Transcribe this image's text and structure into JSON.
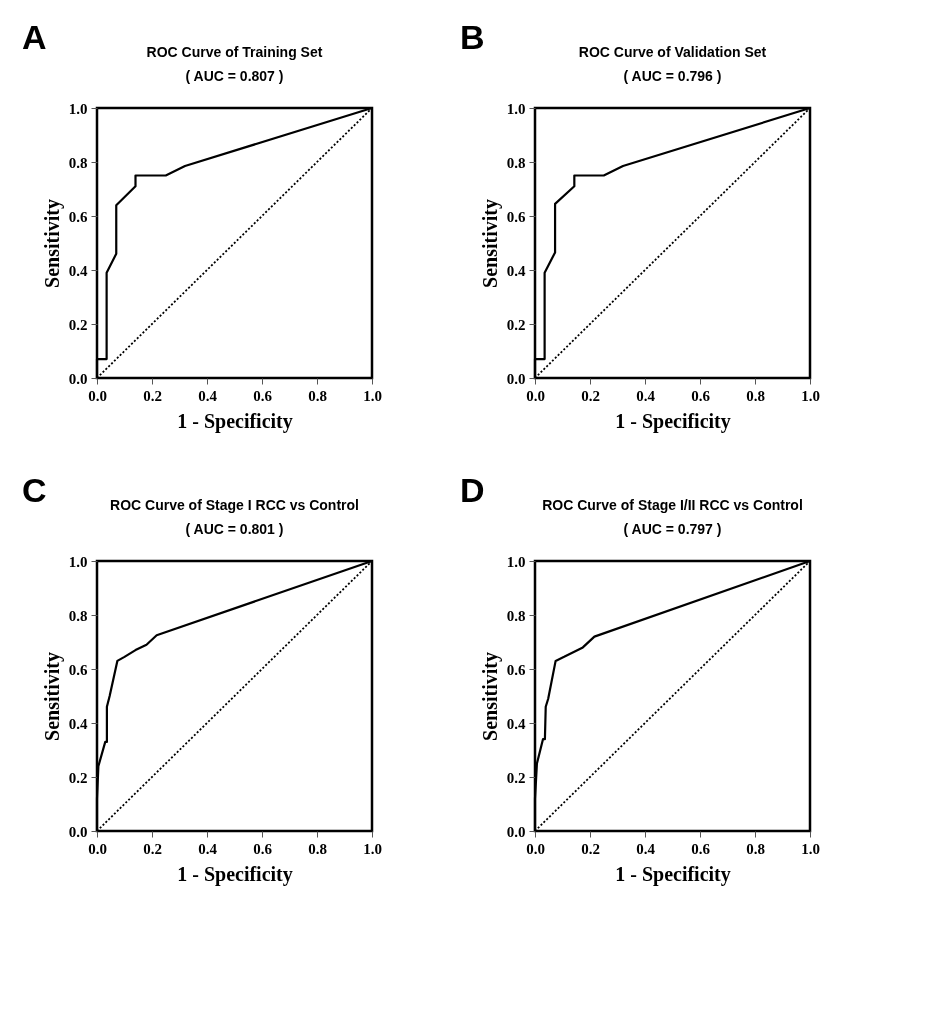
{
  "chart_data": [
    {
      "type": "line",
      "title": "ROC Curve of Training Set",
      "subtitle": "( AUC  = 0.807 )",
      "xlabel": "1 - Specificity",
      "ylabel": "Sensitivity",
      "annotations": [
        "A"
      ],
      "xlim": [
        0,
        1
      ],
      "ylim": [
        0,
        1
      ],
      "xticks": [
        {
          "value": 0,
          "label": "0.0"
        },
        {
          "value": 0.2,
          "label": "0.2"
        },
        {
          "value": 0.4,
          "label": "0.4"
        },
        {
          "value": 0.6,
          "label": "0.6"
        },
        {
          "value": 0.8,
          "label": "0.8"
        },
        {
          "value": 1,
          "label": "1.0"
        }
      ],
      "yticks": [
        {
          "value": 0,
          "label": "0.0"
        },
        {
          "value": 0.2,
          "label": "0.2"
        },
        {
          "value": 0.4,
          "label": "0.4"
        },
        {
          "value": 0.6,
          "label": "0.6"
        },
        {
          "value": 0.8,
          "label": "0.8"
        },
        {
          "value": 1,
          "label": "1.0"
        }
      ],
      "grid": false,
      "series": [
        {
          "color": "#000000",
          "line_style": "solid",
          "x": [
            0,
            0,
            0.035,
            0.035,
            0.07,
            0.07,
            0.14,
            0.14,
            0.25,
            0.32,
            1
          ],
          "values": [
            0,
            0.07,
            0.07,
            0.39,
            0.46,
            0.64,
            0.71,
            0.75,
            0.75,
            0.785,
            1
          ]
        },
        {
          "type": "line",
          "color": "#000000",
          "line_style": "dotted",
          "x": [
            0,
            1
          ],
          "values": [
            0,
            1
          ]
        }
      ]
    },
    {
      "type": "line",
      "title": "ROC Curve of Validation Set",
      "subtitle": "( AUC = 0.796 )",
      "xlabel": "1 - Specificity",
      "ylabel": "Sensitivity",
      "annotations": [
        "B"
      ],
      "xlim": [
        0,
        1
      ],
      "ylim": [
        0,
        1
      ],
      "xticks": [
        {
          "value": 0,
          "label": "0.0"
        },
        {
          "value": 0.2,
          "label": "0.2"
        },
        {
          "value": 0.4,
          "label": "0.4"
        },
        {
          "value": 0.6,
          "label": "0.6"
        },
        {
          "value": 0.8,
          "label": "0.8"
        },
        {
          "value": 1,
          "label": "1.0"
        }
      ],
      "yticks": [
        {
          "value": 0,
          "label": "0.0"
        },
        {
          "value": 0.2,
          "label": "0.2"
        },
        {
          "value": 0.4,
          "label": "0.4"
        },
        {
          "value": 0.6,
          "label": "0.6"
        },
        {
          "value": 0.8,
          "label": "0.8"
        },
        {
          "value": 1,
          "label": "1.0"
        }
      ],
      "grid": false,
      "series": [
        {
          "color": "#000000",
          "line_style": "solid",
          "x": [
            0,
            0,
            0.035,
            0.035,
            0.073,
            0.073,
            0.143,
            0.143,
            0.25,
            0.32,
            1
          ],
          "values": [
            0,
            0.07,
            0.07,
            0.39,
            0.465,
            0.645,
            0.71,
            0.75,
            0.75,
            0.785,
            1
          ]
        },
        {
          "type": "line",
          "color": "#000000",
          "line_style": "dotted",
          "x": [
            0,
            1
          ],
          "values": [
            0,
            1
          ]
        }
      ]
    },
    {
      "type": "line",
      "title": "ROC Curve of Stage I RCC vs Control",
      "subtitle": "( AUC = 0.801 )",
      "xlabel": "1 - Specificity",
      "ylabel": "Sensitivity",
      "annotations": [
        "C"
      ],
      "xlim": [
        0,
        1
      ],
      "ylim": [
        0,
        1
      ],
      "xticks": [
        {
          "value": 0,
          "label": "0.0"
        },
        {
          "value": 0.2,
          "label": "0.2"
        },
        {
          "value": 0.4,
          "label": "0.4"
        },
        {
          "value": 0.6,
          "label": "0.6"
        },
        {
          "value": 0.8,
          "label": "0.8"
        },
        {
          "value": 1,
          "label": "1.0"
        }
      ],
      "yticks": [
        {
          "value": 0,
          "label": "0.0"
        },
        {
          "value": 0.2,
          "label": "0.2"
        },
        {
          "value": 0.4,
          "label": "0.4"
        },
        {
          "value": 0.6,
          "label": "0.6"
        },
        {
          "value": 0.8,
          "label": "0.8"
        },
        {
          "value": 1,
          "label": "1.0"
        }
      ],
      "grid": false,
      "series": [
        {
          "color": "#000000",
          "line_style": "solid",
          "x": [
            0,
            0,
            0.005,
            0.03,
            0.036,
            0.036,
            0.046,
            0.074,
            0.1,
            0.14,
            0.18,
            0.217,
            1
          ],
          "values": [
            0,
            0.12,
            0.24,
            0.33,
            0.33,
            0.46,
            0.5,
            0.63,
            0.645,
            0.67,
            0.69,
            0.725,
            1
          ]
        },
        {
          "type": "line",
          "color": "#000000",
          "line_style": "dotted",
          "x": [
            0,
            1
          ],
          "values": [
            0,
            1
          ]
        }
      ]
    },
    {
      "type": "line",
      "title": "ROC Curve of Stage I/II RCC vs Control",
      "subtitle": "( AUC = 0.797 )",
      "xlabel": "1 - Specificity",
      "ylabel": "Sensitivity",
      "annotations": [
        "D"
      ],
      "xlim": [
        0,
        1
      ],
      "ylim": [
        0,
        1
      ],
      "xticks": [
        {
          "value": 0,
          "label": "0.0"
        },
        {
          "value": 0.2,
          "label": "0.2"
        },
        {
          "value": 0.4,
          "label": "0.4"
        },
        {
          "value": 0.6,
          "label": "0.6"
        },
        {
          "value": 0.8,
          "label": "0.8"
        },
        {
          "value": 1,
          "label": "1.0"
        }
      ],
      "yticks": [
        {
          "value": 0,
          "label": "0.0"
        },
        {
          "value": 0.2,
          "label": "0.2"
        },
        {
          "value": 0.4,
          "label": "0.4"
        },
        {
          "value": 0.6,
          "label": "0.6"
        },
        {
          "value": 0.8,
          "label": "0.8"
        },
        {
          "value": 1,
          "label": "1.0"
        }
      ],
      "grid": false,
      "series": [
        {
          "color": "#000000",
          "line_style": "solid",
          "x": [
            0,
            0,
            0.007,
            0.029,
            0.036,
            0.039,
            0.048,
            0.075,
            0.106,
            0.174,
            0.216,
            1
          ],
          "values": [
            0,
            0.12,
            0.25,
            0.34,
            0.34,
            0.46,
            0.49,
            0.63,
            0.645,
            0.68,
            0.72,
            1
          ]
        },
        {
          "type": "line",
          "color": "#000000",
          "line_style": "dotted",
          "x": [
            0,
            1
          ],
          "values": [
            0,
            1
          ]
        }
      ]
    }
  ]
}
